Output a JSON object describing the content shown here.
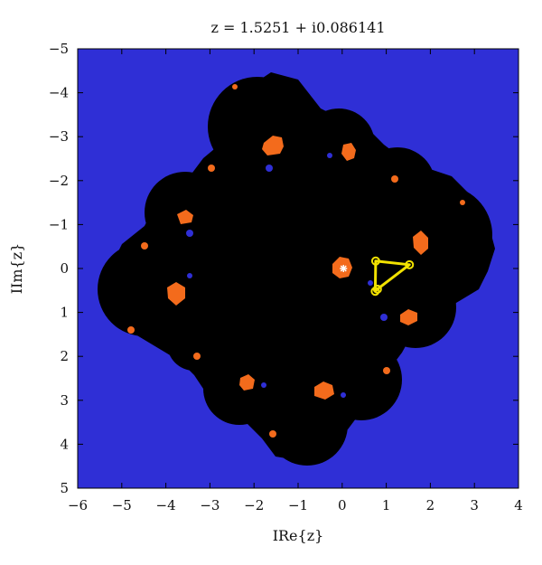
{
  "chart_data": {
    "type": "scatter",
    "title": "z = 1.5251 + i0.086141",
    "xlabel": "IRe{z}",
    "ylabel": "IIm{z}",
    "xlim": [
      -6,
      4
    ],
    "ylim": [
      5,
      -5
    ],
    "x_ticks": [
      "−6",
      "−5",
      "−4",
      "−3",
      "−2",
      "−1",
      "0",
      "1",
      "2",
      "3",
      "4"
    ],
    "y_ticks": [
      "−5",
      "−4",
      "−3",
      "−2",
      "−1",
      "0",
      "1",
      "2",
      "3",
      "4",
      "5"
    ],
    "grid": false,
    "background_color": "#2f2fd6",
    "set_color": "#000000",
    "basin_color": "#f36b1c",
    "path_color": "#f2e200",
    "series": [
      {
        "type": "triangle-path",
        "points": [
          {
            "x": 0.75,
            "y": -0.52
          },
          {
            "x": 0.8,
            "y": -0.47
          },
          {
            "x": 1.5251,
            "y": 0.086141
          },
          {
            "x": 0.76,
            "y": 0.17
          }
        ]
      },
      {
        "type": "marker",
        "points": [
          {
            "x": 0.03,
            "y": 0.0
          }
        ]
      }
    ]
  }
}
